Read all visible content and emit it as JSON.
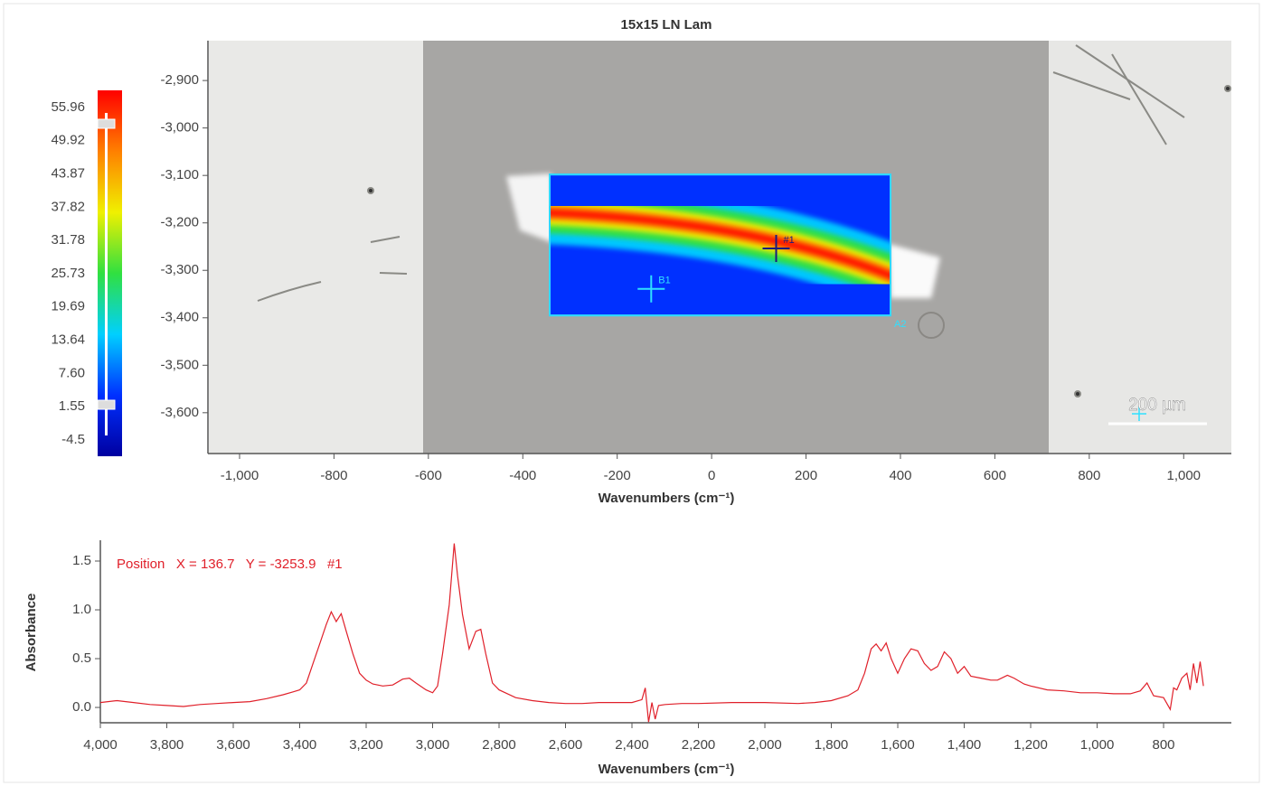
{
  "chart_data": [
    {
      "type": "map",
      "title": "15x15 LN Lam",
      "x_label": "Wavenumbers (cm⁻¹)",
      "xlim": [
        -1067,
        1101
      ],
      "xticks": [
        {
          "value": -1000,
          "label": "-1,000"
        },
        -800,
        -600,
        -400,
        -200,
        0,
        200,
        400,
        600,
        800,
        {
          "value": 1000,
          "label": "1,000"
        }
      ],
      "ylim": [
        -3686,
        -2816
      ],
      "yticks": [
        {
          "value": -2900,
          "label": "-2,900"
        },
        {
          "value": -3000,
          "label": "-3,000"
        },
        {
          "value": -3100,
          "label": "-3,100"
        },
        {
          "value": -3200,
          "label": "-3,200"
        },
        {
          "value": -3300,
          "label": "-3,300"
        },
        {
          "value": -3400,
          "label": "-3,400"
        },
        {
          "value": -3500,
          "label": "-3,500"
        },
        {
          "value": -3600,
          "label": "-3,600"
        }
      ],
      "clim": [
        -7.46,
        59.08
      ],
      "cticks": [
        55.96,
        49.92,
        43.87,
        37.82,
        31.78,
        25.73,
        19.69,
        13.64,
        {
          "value": 7.6,
          "label": "7.60"
        },
        1.55,
        -4.5
      ],
      "colormap": [
        "#0000a0",
        "#0030ff",
        "#00d0ff",
        "#30e040",
        "#f0f000",
        "#ff8000",
        "#ff0000"
      ],
      "map_extent": {
        "x": [
          -343,
          379
        ],
        "y": [
          -3395,
          -3098
        ]
      },
      "markers": [
        {
          "label": "#1",
          "x": 136.7,
          "y": -3253.9,
          "color": "#1a1a80"
        },
        {
          "label": "B1",
          "x": -128,
          "y": -3339,
          "color": "#30e0ff"
        }
      ],
      "region_label": "A2",
      "scale_bar": "200 µm"
    },
    {
      "type": "line",
      "annotation": "Position   X = 136.7   Y = -3253.9   #1",
      "x_label": "Wavenumbers (cm⁻¹)",
      "y_label": "Absorbance",
      "xlim": [
        4000,
        596
      ],
      "xticks": [
        {
          "value": 4000,
          "label": "4,000"
        },
        {
          "value": 3800,
          "label": "3,800"
        },
        {
          "value": 3600,
          "label": "3,600"
        },
        {
          "value": 3400,
          "label": "3,400"
        },
        {
          "value": 3200,
          "label": "3,200"
        },
        {
          "value": 3000,
          "label": "3,000"
        },
        {
          "value": 2800,
          "label": "2,800"
        },
        {
          "value": 2600,
          "label": "2,600"
        },
        {
          "value": 2400,
          "label": "2,400"
        },
        {
          "value": 2200,
          "label": "2,200"
        },
        {
          "value": 2000,
          "label": "2,000"
        },
        {
          "value": 1800,
          "label": "1,800"
        },
        {
          "value": 1600,
          "label": "1,600"
        },
        {
          "value": 1400,
          "label": "1,400"
        },
        {
          "value": 1200,
          "label": "1,200"
        },
        {
          "value": 1000,
          "label": "1,000"
        },
        800
      ],
      "ylim": [
        -0.157,
        1.713
      ],
      "yticks": [
        {
          "value": 0,
          "label": "0.0"
        },
        0.5,
        {
          "value": 1,
          "label": "1.0"
        },
        1.5
      ],
      "color": "#e0202a",
      "x": [
        4000,
        3950,
        3900,
        3850,
        3800,
        3750,
        3700,
        3650,
        3600,
        3550,
        3500,
        3450,
        3420,
        3400,
        3380,
        3360,
        3340,
        3320,
        3305,
        3290,
        3275,
        3260,
        3240,
        3220,
        3200,
        3180,
        3150,
        3120,
        3090,
        3070,
        3050,
        3020,
        3000,
        2985,
        2970,
        2950,
        2935,
        2925,
        2910,
        2890,
        2870,
        2855,
        2840,
        2820,
        2800,
        2750,
        2700,
        2650,
        2600,
        2550,
        2500,
        2450,
        2400,
        2370,
        2360,
        2350,
        2340,
        2330,
        2320,
        2300,
        2250,
        2200,
        2100,
        2000,
        1900,
        1850,
        1800,
        1750,
        1720,
        1700,
        1680,
        1665,
        1650,
        1635,
        1620,
        1600,
        1580,
        1560,
        1540,
        1520,
        1500,
        1480,
        1460,
        1440,
        1420,
        1400,
        1380,
        1350,
        1320,
        1300,
        1270,
        1250,
        1220,
        1200,
        1150,
        1100,
        1050,
        1000,
        950,
        900,
        870,
        850,
        830,
        800,
        780,
        770,
        760,
        745,
        730,
        720,
        710,
        700,
        690,
        680
      ],
      "values": [
        0.05,
        0.07,
        0.05,
        0.03,
        0.02,
        0.01,
        0.03,
        0.04,
        0.05,
        0.06,
        0.09,
        0.13,
        0.16,
        0.18,
        0.25,
        0.45,
        0.65,
        0.85,
        0.98,
        0.88,
        0.96,
        0.78,
        0.55,
        0.35,
        0.28,
        0.24,
        0.22,
        0.23,
        0.29,
        0.3,
        0.25,
        0.18,
        0.15,
        0.22,
        0.55,
        1.05,
        1.68,
        1.35,
        0.95,
        0.6,
        0.78,
        0.8,
        0.55,
        0.25,
        0.18,
        0.1,
        0.07,
        0.05,
        0.04,
        0.04,
        0.05,
        0.05,
        0.05,
        0.08,
        0.2,
        -0.15,
        0.05,
        -0.12,
        0.02,
        0.03,
        0.04,
        0.04,
        0.05,
        0.05,
        0.04,
        0.05,
        0.07,
        0.12,
        0.18,
        0.35,
        0.6,
        0.65,
        0.58,
        0.66,
        0.5,
        0.35,
        0.5,
        0.6,
        0.58,
        0.45,
        0.38,
        0.42,
        0.57,
        0.5,
        0.35,
        0.42,
        0.32,
        0.3,
        0.28,
        0.28,
        0.33,
        0.3,
        0.24,
        0.22,
        0.18,
        0.17,
        0.15,
        0.15,
        0.14,
        0.14,
        0.17,
        0.25,
        0.12,
        0.1,
        -0.02,
        0.2,
        0.18,
        0.3,
        0.35,
        0.18,
        0.45,
        0.25,
        0.47,
        0.22
      ]
    }
  ]
}
